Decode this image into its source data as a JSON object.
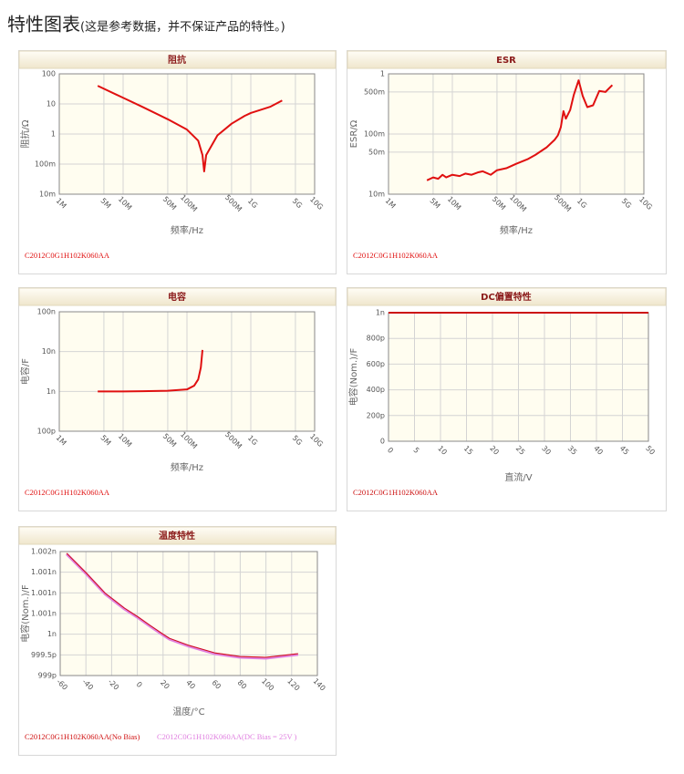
{
  "heading": {
    "title": "特性图表",
    "note": "(这是参考数据，并不保证产品的特性。)"
  },
  "chart_data": [
    {
      "type": "line",
      "title": "阻抗",
      "xlabel": "频率/Hz",
      "ylabel": "阻抗/Ω",
      "xscale": "log",
      "yscale": "log",
      "grid": true,
      "legend": "bottom",
      "xlim": [
        1000000,
        10000000000
      ],
      "ylim": [
        0.01,
        100
      ],
      "xticks": [
        {
          "value": 1000000,
          "label": "1M"
        },
        {
          "value": 5000000,
          "label": "5M"
        },
        {
          "value": 10000000,
          "label": "10M"
        },
        {
          "value": 50000000,
          "label": "50M"
        },
        {
          "value": 100000000,
          "label": "100M"
        },
        {
          "value": 500000000,
          "label": "500M"
        },
        {
          "value": 1000000000,
          "label": "1G"
        },
        {
          "value": 5000000000,
          "label": "5G"
        },
        {
          "value": 10000000000,
          "label": "10G"
        }
      ],
      "yticks": [
        {
          "value": 0.01,
          "label": "10m"
        },
        {
          "value": 0.1,
          "label": "100m"
        },
        1,
        10,
        100
      ],
      "x": [
        4000000,
        10000000,
        20000000,
        50000000,
        100000000,
        150000000,
        175000000,
        186000000,
        200000000,
        300000000,
        500000000,
        800000000,
        1000000000,
        2000000000,
        3100000000
      ],
      "series": [
        {
          "name": "C2012C0G1H102K060AA",
          "color": "#e01010",
          "values": [
            40,
            16,
            8,
            3.1,
            1.4,
            0.6,
            0.2,
            0.057,
            0.2,
            0.9,
            2.2,
            4,
            5,
            8,
            13
          ]
        }
      ]
    },
    {
      "type": "line",
      "title": "ESR",
      "xlabel": "频率/Hz",
      "ylabel": "ESR/Ω",
      "xscale": "log",
      "yscale": "log",
      "grid": true,
      "legend": "bottom",
      "xlim": [
        1000000,
        10000000000
      ],
      "ylim": [
        0.01,
        1
      ],
      "xticks": [
        {
          "value": 1000000,
          "label": "1M"
        },
        {
          "value": 5000000,
          "label": "5M"
        },
        {
          "value": 10000000,
          "label": "10M"
        },
        {
          "value": 50000000,
          "label": "50M"
        },
        {
          "value": 100000000,
          "label": "100M"
        },
        {
          "value": 500000000,
          "label": "500M"
        },
        {
          "value": 1000000000,
          "label": "1G"
        },
        {
          "value": 5000000000,
          "label": "5G"
        },
        {
          "value": 10000000000,
          "label": "10G"
        }
      ],
      "yticks": [
        {
          "value": 0.01,
          "label": "10m"
        },
        {
          "value": 0.05,
          "label": "50m"
        },
        {
          "value": 0.1,
          "label": "100m"
        },
        {
          "value": 0.5,
          "label": "500m"
        },
        1
      ],
      "x": [
        4000000,
        5000000,
        6000000,
        7000000,
        8000000,
        10000000,
        13000000,
        16000000,
        20000000,
        25000000,
        30000000,
        40000000,
        50000000,
        70000000,
        100000000,
        150000000,
        200000000,
        300000000,
        400000000,
        450000000,
        500000000,
        550000000,
        600000000,
        700000000,
        800000000,
        950000000,
        1100000000,
        1300000000,
        1600000000,
        2000000000,
        2500000000,
        3200000000
      ],
      "series": [
        {
          "name": "C2012C0G1H102K060AA",
          "color": "#e01010",
          "values": [
            0.017,
            0.019,
            0.018,
            0.021,
            0.019,
            0.021,
            0.02,
            0.022,
            0.021,
            0.023,
            0.024,
            0.021,
            0.025,
            0.027,
            0.032,
            0.038,
            0.045,
            0.06,
            0.08,
            0.095,
            0.13,
            0.24,
            0.18,
            0.25,
            0.45,
            0.78,
            0.43,
            0.28,
            0.3,
            0.52,
            0.5,
            0.65
          ]
        }
      ]
    },
    {
      "type": "line",
      "title": "电容",
      "xlabel": "频率/Hz",
      "ylabel": "电容/F",
      "xscale": "log",
      "yscale": "log",
      "grid": true,
      "legend": "bottom",
      "xlim": [
        1000000,
        10000000000
      ],
      "ylim": [
        1e-10,
        1e-07
      ],
      "xticks": [
        {
          "value": 1000000,
          "label": "1M"
        },
        {
          "value": 5000000,
          "label": "5M"
        },
        {
          "value": 10000000,
          "label": "10M"
        },
        {
          "value": 50000000,
          "label": "50M"
        },
        {
          "value": 100000000,
          "label": "100M"
        },
        {
          "value": 500000000,
          "label": "500M"
        },
        {
          "value": 1000000000,
          "label": "1G"
        },
        {
          "value": 5000000000,
          "label": "5G"
        },
        {
          "value": 10000000000,
          "label": "10G"
        }
      ],
      "yticks": [
        {
          "value": 1e-10,
          "label": "100p"
        },
        {
          "value": 1e-09,
          "label": "1n"
        },
        {
          "value": 1e-08,
          "label": "10n"
        },
        {
          "value": 1e-07,
          "label": "100n"
        }
      ],
      "x": [
        4000000,
        10000000,
        20000000,
        50000000,
        100000000,
        130000000,
        150000000,
        165000000,
        175000000
      ],
      "series": [
        {
          "name": "C2012C0G1H102K060AA",
          "color": "#e01010",
          "values": [
            1e-09,
            1e-09,
            1.01e-09,
            1.04e-09,
            1.12e-09,
            1.4e-09,
            2e-09,
            4e-09,
            1.1e-08
          ]
        }
      ]
    },
    {
      "type": "line",
      "title": "DC偏置特性",
      "xlabel": "直流/V",
      "ylabel": "电容(Nom.)/F",
      "xscale": "linear",
      "yscale": "linear",
      "grid": true,
      "legend": "bottom",
      "xlim": [
        0,
        50
      ],
      "ylim": [
        0,
        1e-09
      ],
      "xticks": [
        0,
        5,
        10,
        15,
        20,
        25,
        30,
        35,
        40,
        45,
        50
      ],
      "yticks": [
        0,
        {
          "value": 2e-10,
          "label": "200p"
        },
        {
          "value": 4e-10,
          "label": "400p"
        },
        {
          "value": 6e-10,
          "label": "600p"
        },
        {
          "value": 8e-10,
          "label": "800p"
        },
        {
          "value": 1e-09,
          "label": "1n"
        }
      ],
      "x": [
        0,
        5,
        10,
        15,
        20,
        25,
        30,
        35,
        40,
        45,
        50
      ],
      "series": [
        {
          "name": "C2012C0G1H102K060AA",
          "color": "#cc1010",
          "values": [
            1e-09,
            1e-09,
            1e-09,
            1e-09,
            1e-09,
            1e-09,
            1e-09,
            1e-09,
            1e-09,
            1e-09,
            1e-09
          ]
        }
      ]
    },
    {
      "type": "line",
      "title": "温度特性",
      "xlabel": "温度/°C",
      "ylabel": "电容(Nom.)/F",
      "xscale": "linear",
      "yscale": "linear",
      "grid": true,
      "legend": "bottom",
      "xlim": [
        -60,
        140
      ],
      "ylim": [
        9.99e-10,
        1.002e-09
      ],
      "xticks": [
        -60,
        -40,
        -20,
        0,
        20,
        40,
        60,
        80,
        100,
        120,
        140
      ],
      "yticks": [
        {
          "value": 9.99e-10,
          "label": "999p"
        },
        {
          "value": 9.995e-10,
          "label": "999.5p"
        },
        {
          "value": 1e-09,
          "label": "1n"
        },
        {
          "value": 1.0005e-09,
          "label": "1.001n"
        },
        {
          "value": 1.001e-09,
          "label": "1.001n"
        },
        {
          "value": 1.0015e-09,
          "label": "1.001n"
        },
        {
          "value": 1.002e-09,
          "label": "1.002n"
        }
      ],
      "x": [
        -55,
        -40,
        -25,
        -10,
        0,
        10,
        20,
        25,
        40,
        60,
        80,
        100,
        125
      ],
      "series": [
        {
          "name": "C2012C0G1H102K060AA(DC Bias = 25V )",
          "color": "#e080e0",
          "width": 3,
          "values": [
            1.00194e-09,
            1.00147e-09,
            1.00097e-09,
            1.00061e-09,
            1.00041e-09,
            1.00019e-09,
            9.9998e-10,
            9.9988e-10,
            9.9971e-10,
            9.9953e-10,
            9.9944e-10,
            9.9942e-10,
            9.9951e-10
          ]
        },
        {
          "name": "C2012C0G1H102K060AA(No Bias)",
          "color": "#d01010",
          "width": 1,
          "values": [
            1.00196e-09,
            1.00149e-09,
            1.00099e-09,
            1.00063e-09,
            1.00043e-09,
            1.00021e-09,
            1e-09,
            9.999e-10,
            9.9973e-10,
            9.9955e-10,
            9.9946e-10,
            9.9944e-10,
            9.9953e-10
          ]
        }
      ]
    }
  ]
}
